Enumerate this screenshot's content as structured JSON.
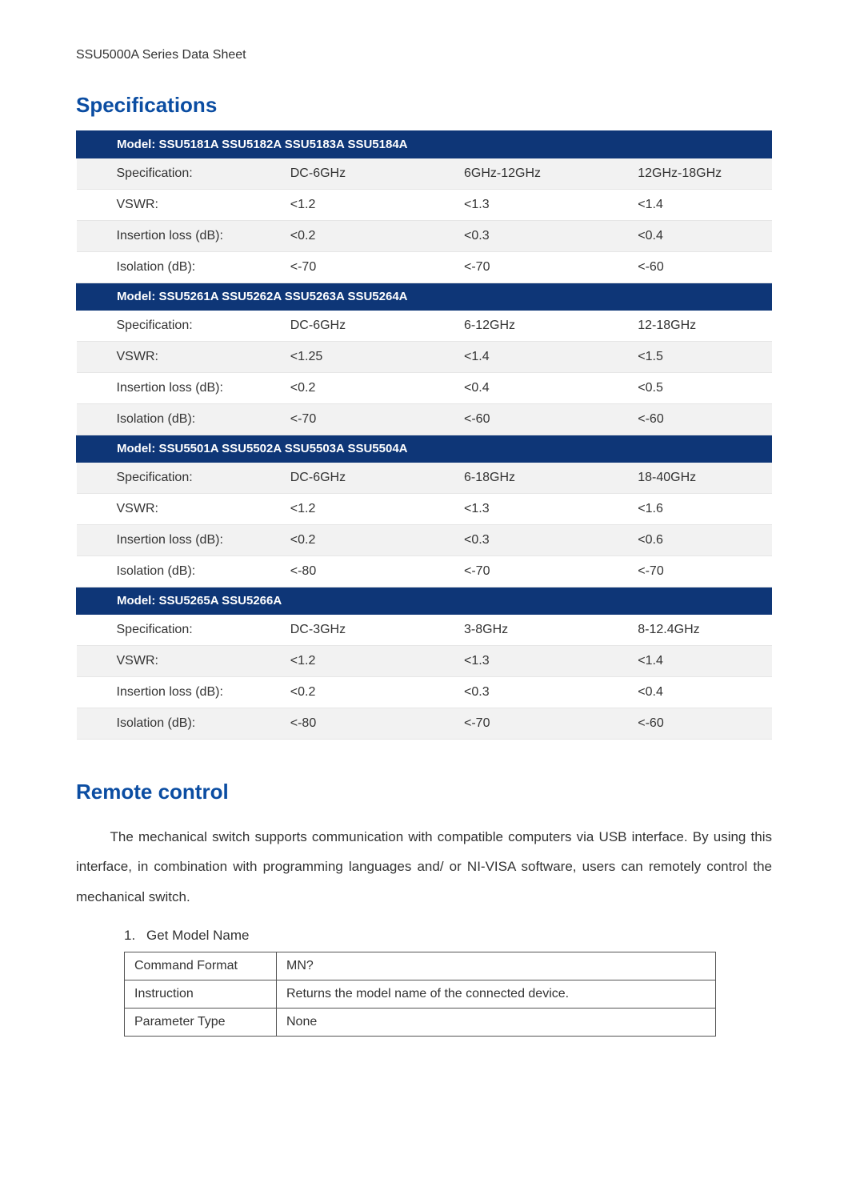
{
  "doc_header": "SSU5000A Series Data Sheet",
  "colors": {
    "heading": "#0b4da2",
    "model_row_bg": "#0e3677",
    "model_row_fg": "#ffffff",
    "stripe_a": "#ffffff",
    "stripe_b": "#f2f2f2",
    "border": "#e6e6e6",
    "text": "#333333"
  },
  "sections": {
    "specs": {
      "title": "Specifications",
      "row_labels": {
        "spec": "Specification:",
        "vswr": "VSWR:",
        "insertion": "Insertion loss (dB):",
        "isolation": "Isolation (dB):"
      },
      "groups": [
        {
          "model_header": "Model: SSU5181A   SSU5182A   SSU5183A   SSU5184A",
          "rows": [
            {
              "label_key": "spec",
              "c2": "DC-6GHz",
              "c3": "6GHz-12GHz",
              "c4": "12GHz-18GHz"
            },
            {
              "label_key": "vswr",
              "c2": "<1.2",
              "c3": "<1.3",
              "c4": "<1.4"
            },
            {
              "label_key": "insertion",
              "c2": "<0.2",
              "c3": "<0.3",
              "c4": "<0.4"
            },
            {
              "label_key": "isolation",
              "c2": "<-70",
              "c3": "<-70",
              "c4": "<-60"
            }
          ]
        },
        {
          "model_header": "Model: SSU5261A   SSU5262A   SSU5263A   SSU5264A",
          "rows": [
            {
              "label_key": "spec",
              "c2": "DC-6GHz",
              "c3": "6-12GHz",
              "c4": "12-18GHz"
            },
            {
              "label_key": "vswr",
              "c2": "<1.25",
              "c3": "<1.4",
              "c4": "<1.5"
            },
            {
              "label_key": "insertion",
              "c2": "<0.2",
              "c3": "<0.4",
              "c4": "<0.5"
            },
            {
              "label_key": "isolation",
              "c2": "<-70",
              "c3": "<-60",
              "c4": "<-60"
            }
          ]
        },
        {
          "model_header": "Model: SSU5501A   SSU5502A   SSU5503A   SSU5504A",
          "rows": [
            {
              "label_key": "spec",
              "c2": "DC-6GHz",
              "c3": "6-18GHz",
              "c4": "18-40GHz"
            },
            {
              "label_key": "vswr",
              "c2": "<1.2",
              "c3": "<1.3",
              "c4": "<1.6"
            },
            {
              "label_key": "insertion",
              "c2": "<0.2",
              "c3": "<0.3",
              "c4": "<0.6"
            },
            {
              "label_key": "isolation",
              "c2": "<-80",
              "c3": "<-70",
              "c4": "<-70"
            }
          ]
        },
        {
          "model_header": "Model: SSU5265A   SSU5266A",
          "rows": [
            {
              "label_key": "spec",
              "c2": "DC-3GHz",
              "c3": "3-8GHz",
              "c4": "8-12.4GHz"
            },
            {
              "label_key": "vswr",
              "c2": "<1.2",
              "c3": "<1.3",
              "c4": "<1.4"
            },
            {
              "label_key": "insertion",
              "c2": "<0.2",
              "c3": "<0.3",
              "c4": "<0.4"
            },
            {
              "label_key": "isolation",
              "c2": "<-80",
              "c3": "<-70",
              "c4": "<-60"
            }
          ]
        }
      ]
    },
    "remote": {
      "title": "Remote control",
      "paragraph": "The mechanical switch supports communication with compatible computers via USB interface. By using this interface, in combination with programming languages and/ or NI-VISA software, users can remotely control the mechanical switch.",
      "commands": [
        {
          "num": "1.",
          "title": "Get Model Name",
          "rows": [
            {
              "k": "Command Format",
              "v": "MN?"
            },
            {
              "k": "Instruction",
              "v": "Returns the model name of the connected device."
            },
            {
              "k": "Parameter Type",
              "v": "None"
            }
          ]
        }
      ]
    }
  }
}
